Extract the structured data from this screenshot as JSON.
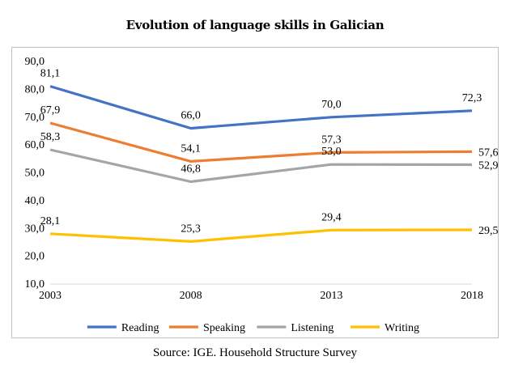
{
  "chart_data": {
    "type": "line",
    "title": "Evolution of language skills in Galician",
    "xlabel": "",
    "ylabel": "",
    "categories": [
      "2003",
      "2008",
      "2013",
      "2018"
    ],
    "ylim": [
      10,
      90
    ],
    "yticks": [
      10,
      20,
      30,
      40,
      50,
      60,
      70,
      80,
      90
    ],
    "ytick_labels": [
      "10,0",
      "20,0",
      "30,0",
      "40,0",
      "50,0",
      "60,0",
      "70,0",
      "80,0",
      "90,0"
    ],
    "grid": false,
    "legend_position": "bottom",
    "series": [
      {
        "name": "Reading",
        "color": "#4472c4",
        "values": [
          81.1,
          66.0,
          70.0,
          72.3
        ],
        "labels": [
          "81,1",
          "66,0",
          "70,0",
          "72,3"
        ]
      },
      {
        "name": "Speaking",
        "color": "#ed7d31",
        "values": [
          67.9,
          54.1,
          57.3,
          57.6
        ],
        "labels": [
          "67,9",
          "54,1",
          "57,3",
          "57,6"
        ]
      },
      {
        "name": "Listening",
        "color": "#a5a5a5",
        "values": [
          58.3,
          46.8,
          53.0,
          52.9
        ],
        "labels": [
          "58,3",
          "46,8",
          "53,0",
          "52,9"
        ]
      },
      {
        "name": "Writing",
        "color": "#ffc000",
        "values": [
          28.1,
          25.3,
          29.4,
          29.5
        ],
        "labels": [
          "28,1",
          "25,3",
          "29,4",
          "29,5"
        ]
      }
    ],
    "source": "Source: IGE. Household Structure Survey"
  }
}
